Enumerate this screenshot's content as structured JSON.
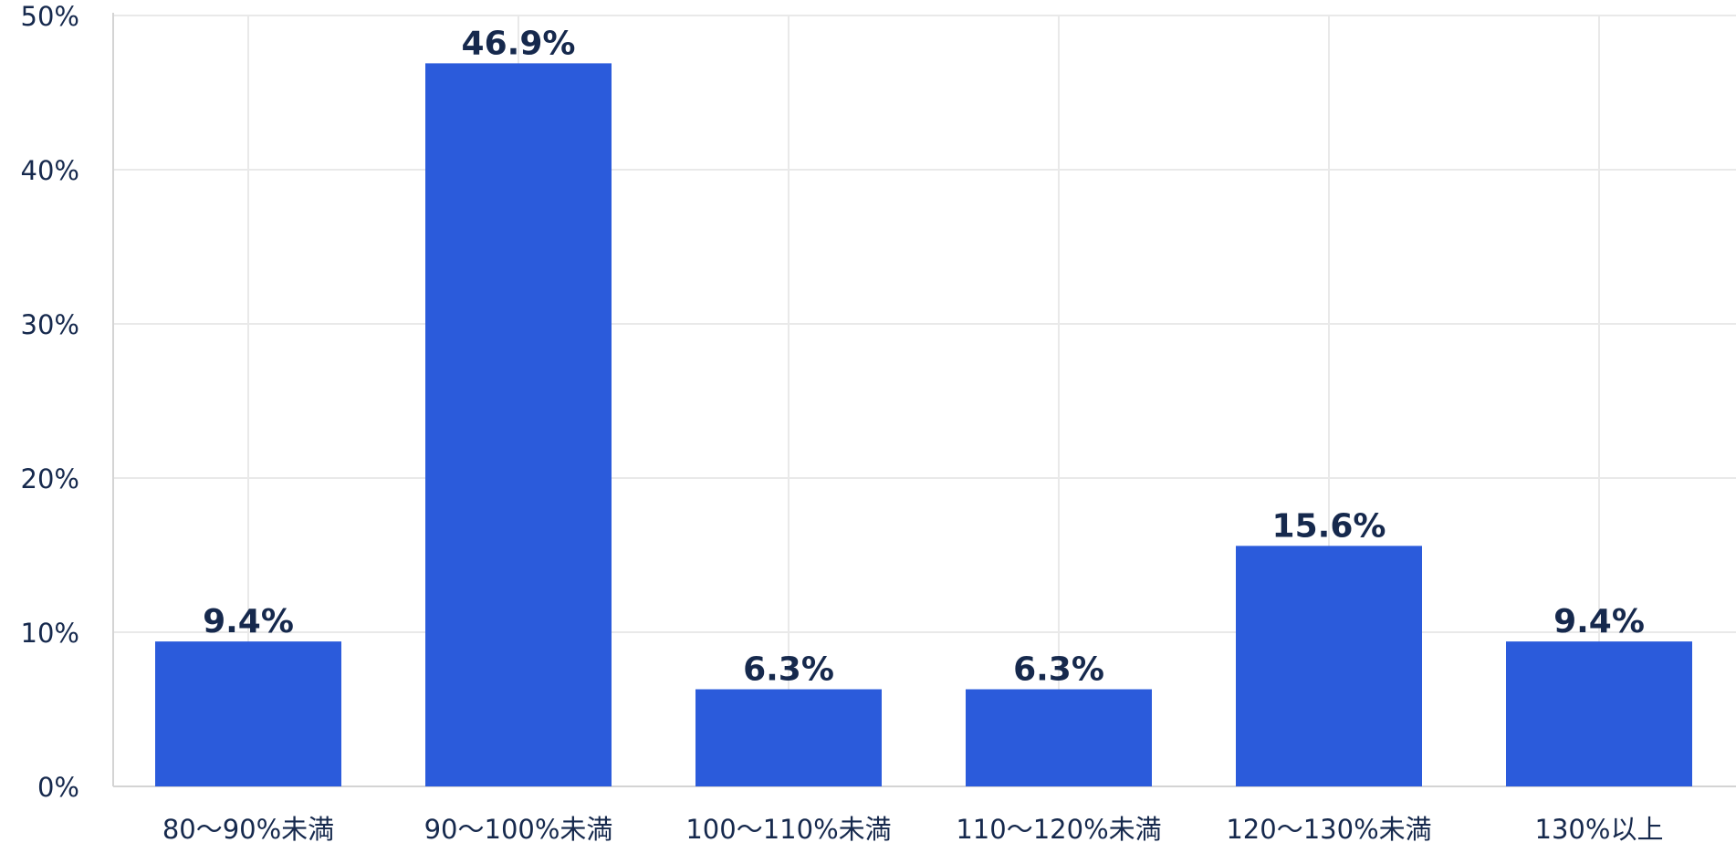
{
  "chart_data": {
    "type": "bar",
    "categories": [
      "80〜90%未満",
      "90〜100%未満",
      "100〜110%未満",
      "110〜120%未満",
      "120〜130%未満",
      "130%以上"
    ],
    "values": [
      9.4,
      46.9,
      6.3,
      6.3,
      15.6,
      9.4
    ],
    "value_labels": [
      "9.4%",
      "46.9%",
      "6.3%",
      "6.3%",
      "15.6%",
      "9.4%"
    ],
    "y_ticks": [
      0,
      10,
      20,
      30,
      40,
      50
    ],
    "y_tick_labels": [
      "0%",
      "10%",
      "20%",
      "30%",
      "40%",
      "50%"
    ],
    "ylim": [
      0,
      50
    ],
    "grid": true,
    "legend": "none",
    "colors": {
      "bar": "#2b5bdb",
      "text": "#16294d",
      "grid": "#e9e9e9",
      "axis": "#d4d4d4"
    }
  }
}
